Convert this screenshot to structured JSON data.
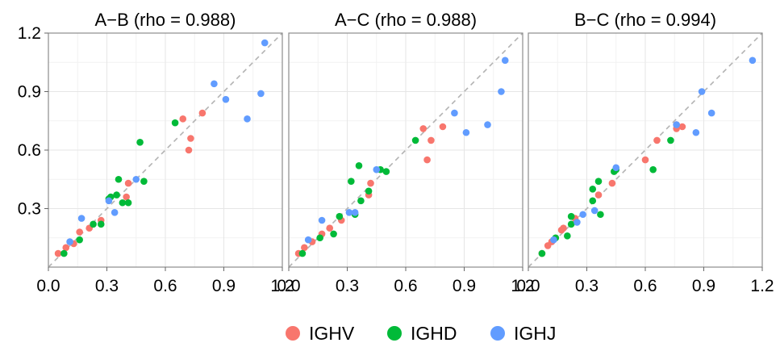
{
  "chart_data": {
    "type": "scatter",
    "xlim": [
      0.0,
      1.2
    ],
    "ylim": [
      0.0,
      1.2
    ],
    "ticks": [
      0.0,
      0.3,
      0.6,
      0.9,
      1.2
    ],
    "tick_labels": [
      "0.0",
      "0.3",
      "0.6",
      "0.9",
      "1.2"
    ],
    "reference_line": "y = x (dashed grey)",
    "grid": true,
    "legend_position": "bottom",
    "groups": [
      {
        "name": "IGHV",
        "color": "#F8766D"
      },
      {
        "name": "IGHD",
        "color": "#00BA38"
      },
      {
        "name": "IGHJ",
        "color": "#619CFF"
      }
    ],
    "panels": [
      {
        "title": "A−B (rho = 0.988)",
        "points": {
          "IGHV": [
            [
              0.05,
              0.07
            ],
            [
              0.09,
              0.1
            ],
            [
              0.13,
              0.12
            ],
            [
              0.16,
              0.18
            ],
            [
              0.21,
              0.2
            ],
            [
              0.27,
              0.24
            ],
            [
              0.4,
              0.36
            ],
            [
              0.41,
              0.43
            ],
            [
              0.69,
              0.76
            ],
            [
              0.72,
              0.6
            ],
            [
              0.73,
              0.66
            ],
            [
              0.79,
              0.79
            ]
          ],
          "IGHD": [
            [
              0.08,
              0.07
            ],
            [
              0.16,
              0.14
            ],
            [
              0.23,
              0.22
            ],
            [
              0.27,
              0.22
            ],
            [
              0.31,
              0.35
            ],
            [
              0.32,
              0.36
            ],
            [
              0.35,
              0.37
            ],
            [
              0.36,
              0.45
            ],
            [
              0.38,
              0.33
            ],
            [
              0.41,
              0.33
            ],
            [
              0.49,
              0.44
            ],
            [
              0.47,
              0.64
            ],
            [
              0.65,
              0.74
            ]
          ],
          "IGHJ": [
            [
              0.11,
              0.13
            ],
            [
              0.17,
              0.25
            ],
            [
              0.31,
              0.34
            ],
            [
              0.34,
              0.28
            ],
            [
              0.45,
              0.45
            ],
            [
              0.85,
              0.94
            ],
            [
              0.91,
              0.86
            ],
            [
              1.02,
              0.76
            ],
            [
              1.09,
              0.89
            ],
            [
              1.11,
              1.15
            ]
          ]
        }
      },
      {
        "title": "A−C (rho = 0.988)",
        "points": {
          "IGHV": [
            [
              0.05,
              0.07
            ],
            [
              0.08,
              0.1
            ],
            [
              0.12,
              0.13
            ],
            [
              0.17,
              0.17
            ],
            [
              0.21,
              0.2
            ],
            [
              0.27,
              0.24
            ],
            [
              0.41,
              0.37
            ],
            [
              0.42,
              0.43
            ],
            [
              0.69,
              0.71
            ],
            [
              0.71,
              0.55
            ],
            [
              0.73,
              0.65
            ],
            [
              0.79,
              0.72
            ]
          ],
          "IGHD": [
            [
              0.07,
              0.07
            ],
            [
              0.16,
              0.15
            ],
            [
              0.23,
              0.17
            ],
            [
              0.26,
              0.26
            ],
            [
              0.32,
              0.44
            ],
            [
              0.34,
              0.27
            ],
            [
              0.36,
              0.52
            ],
            [
              0.37,
              0.34
            ],
            [
              0.41,
              0.39
            ],
            [
              0.47,
              0.5
            ],
            [
              0.5,
              0.49
            ],
            [
              0.65,
              0.65
            ]
          ],
          "IGHJ": [
            [
              0.1,
              0.14
            ],
            [
              0.17,
              0.24
            ],
            [
              0.31,
              0.28
            ],
            [
              0.34,
              0.28
            ],
            [
              0.45,
              0.5
            ],
            [
              0.85,
              0.79
            ],
            [
              0.91,
              0.69
            ],
            [
              1.02,
              0.73
            ],
            [
              1.09,
              0.9
            ],
            [
              1.11,
              1.06
            ]
          ]
        }
      },
      {
        "title": "B−C (rho = 0.994)",
        "points": {
          "IGHV": [
            [
              0.07,
              0.07
            ],
            [
              0.1,
              0.11
            ],
            [
              0.12,
              0.13
            ],
            [
              0.17,
              0.19
            ],
            [
              0.18,
              0.2
            ],
            [
              0.24,
              0.25
            ],
            [
              0.36,
              0.37
            ],
            [
              0.43,
              0.43
            ],
            [
              0.6,
              0.55
            ],
            [
              0.66,
              0.65
            ],
            [
              0.76,
              0.73
            ],
            [
              0.76,
              0.71
            ],
            [
              0.79,
              0.72
            ]
          ],
          "IGHD": [
            [
              0.07,
              0.07
            ],
            [
              0.14,
              0.15
            ],
            [
              0.2,
              0.16
            ],
            [
              0.22,
              0.26
            ],
            [
              0.22,
              0.22
            ],
            [
              0.33,
              0.34
            ],
            [
              0.33,
              0.4
            ],
            [
              0.36,
              0.44
            ],
            [
              0.37,
              0.27
            ],
            [
              0.44,
              0.49
            ],
            [
              0.45,
              0.5
            ],
            [
              0.64,
              0.5
            ],
            [
              0.73,
              0.65
            ]
          ],
          "IGHJ": [
            [
              0.13,
              0.14
            ],
            [
              0.25,
              0.23
            ],
            [
              0.28,
              0.27
            ],
            [
              0.34,
              0.29
            ],
            [
              0.45,
              0.51
            ],
            [
              0.76,
              0.73
            ],
            [
              0.86,
              0.69
            ],
            [
              0.89,
              0.9
            ],
            [
              0.94,
              0.79
            ],
            [
              1.15,
              1.06
            ]
          ]
        }
      }
    ]
  }
}
